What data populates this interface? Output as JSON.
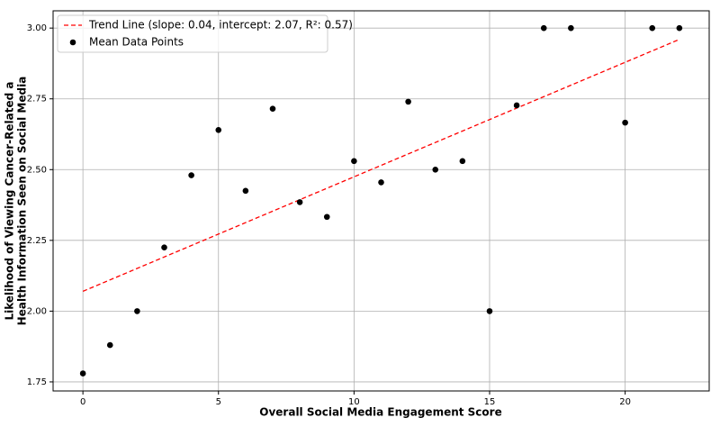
{
  "chart_data": {
    "type": "scatter",
    "xlabel": "Overall Social Media Engagement Score",
    "ylabel": [
      "Likelihood of Viewing Cancer-Related a",
      "Health Information Seen on Social Media"
    ],
    "xlim": [
      -1.1,
      23.1
    ],
    "ylim": [
      1.718,
      3.061
    ],
    "xticks": [
      0,
      5,
      10,
      15,
      20
    ],
    "yticks": [
      1.75,
      {
        "value": 2,
        "label": "2.00"
      },
      2.25,
      {
        "value": 2.5,
        "label": "2.50"
      },
      2.75,
      {
        "value": 3,
        "label": "3.00"
      }
    ],
    "grid": true,
    "legend": "upper left",
    "series": [
      {
        "name": "Trend Line (slope: 0.04, intercept: 2.07, R²: 0.57)",
        "type": "line",
        "style": "dashed",
        "color": "#ff0000",
        "x": [
          0,
          22
        ],
        "values": [
          2.07,
          2.96
        ]
      },
      {
        "name": "Mean Data Points",
        "type": "scatter",
        "color": "#000000",
        "x": [
          0,
          1,
          2,
          3,
          4,
          5,
          6,
          7,
          8,
          9,
          10,
          11,
          12,
          13,
          14,
          15,
          16,
          17,
          18,
          20,
          21,
          22
        ],
        "values": [
          1.78,
          1.88,
          2.0,
          2.225,
          2.48,
          2.64,
          2.425,
          2.715,
          2.385,
          2.333,
          2.53,
          2.455,
          2.74,
          2.5,
          2.53,
          2.0,
          2.727,
          3.0,
          3.0,
          2.666,
          3.0,
          3.0
        ]
      }
    ]
  }
}
